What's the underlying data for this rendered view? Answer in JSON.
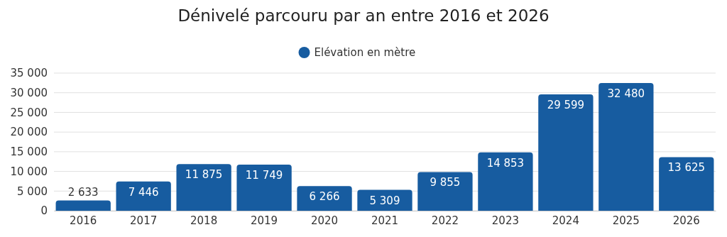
{
  "chart_data": {
    "type": "bar",
    "title": "Dénivelé parcouru par an entre 2016 et 2026",
    "categories": [
      "2016",
      "2017",
      "2018",
      "2019",
      "2020",
      "2021",
      "2022",
      "2023",
      "2024",
      "2025",
      "2026"
    ],
    "series": [
      {
        "name": "Elévation en mètre",
        "color": "#175ca0",
        "values": [
          2633,
          7446,
          11875,
          11749,
          6266,
          5309,
          9855,
          14853,
          29599,
          32480,
          13625
        ]
      }
    ],
    "ylim": [
      0,
      35000
    ],
    "yticks": [
      0,
      5000,
      10000,
      15000,
      20000,
      25000,
      30000,
      35000
    ],
    "grid": "y",
    "legend": "top",
    "data_labels": true
  }
}
